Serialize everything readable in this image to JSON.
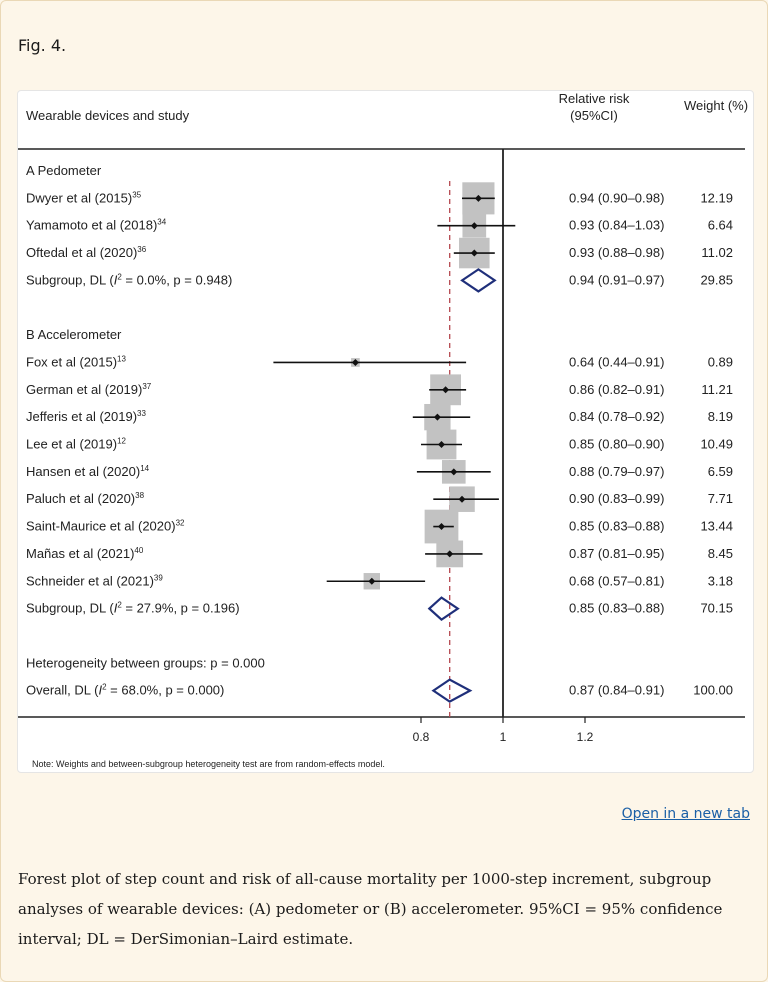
{
  "figure_label": "Fig. 4.",
  "open_link": "Open in a new tab",
  "caption": "Forest plot of step count and risk of all-cause mortality per 1000-step increment, subgroup analyses of wearable devices: (A) pedometer or (B) accelerometer. 95%CI = 95% confidence interval; DL = DerSimonian–Laird estimate.",
  "chart_data": {
    "type": "forest",
    "header": {
      "study": "Wearable devices and study",
      "rr_line1": "Relative risk",
      "rr_line2": "(95%CI)",
      "weight": "Weight (%)"
    },
    "x_ticks": [
      0.8,
      1,
      1.2
    ],
    "x_tick_labels": [
      "0.8",
      "1",
      "1.2"
    ],
    "null_value": 1,
    "overall_reference": 0.87,
    "rows": [
      {
        "kind": "group",
        "label": "A    Pedometer"
      },
      {
        "kind": "study",
        "name": "Dwyer et al (2015)",
        "ref": "35",
        "rr": 0.94,
        "lo": 0.9,
        "hi": 0.98,
        "rr_text": "0.94 (0.90–0.98)",
        "weight": 12.19,
        "weight_text": "12.19"
      },
      {
        "kind": "study",
        "name": "Yamamoto et al (2018)",
        "ref": "34",
        "rr": 0.93,
        "lo": 0.84,
        "hi": 1.03,
        "rr_text": "0.93 (0.84–1.03)",
        "weight": 6.64,
        "weight_text": "6.64"
      },
      {
        "kind": "study",
        "name": "Oftedal et al (2020)",
        "ref": "36",
        "rr": 0.93,
        "lo": 0.88,
        "hi": 0.98,
        "rr_text": "0.93 (0.88–0.98)",
        "weight": 11.02,
        "weight_text": "11.02"
      },
      {
        "kind": "subtotal",
        "pre": "Subgroup, DL (",
        "i2": "I",
        "post": "2 = 0.0%, p = 0.948)",
        "rr": 0.94,
        "lo": 0.91,
        "hi": 0.97,
        "rr_text": "0.94 (0.91–0.97)",
        "weight_text": "29.85"
      },
      {
        "kind": "gap"
      },
      {
        "kind": "group",
        "label": "B    Accelerometer"
      },
      {
        "kind": "study",
        "name": "Fox et al (2015)",
        "ref": "13",
        "rr": 0.64,
        "lo": 0.44,
        "hi": 0.91,
        "rr_text": "0.64 (0.44–0.91)",
        "weight": 0.89,
        "weight_text": "0.89"
      },
      {
        "kind": "study",
        "name": "German et al (2019)",
        "ref": "37",
        "rr": 0.86,
        "lo": 0.82,
        "hi": 0.91,
        "rr_text": "0.86 (0.82–0.91)",
        "weight": 11.21,
        "weight_text": "11.21"
      },
      {
        "kind": "study",
        "name": "Jefferis et al (2019)",
        "ref": "33",
        "rr": 0.84,
        "lo": 0.78,
        "hi": 0.92,
        "rr_text": "0.84 (0.78–0.92)",
        "weight": 8.19,
        "weight_text": "8.19"
      },
      {
        "kind": "study",
        "name": "Lee et al (2019)",
        "ref": "12",
        "rr": 0.85,
        "lo": 0.8,
        "hi": 0.9,
        "rr_text": "0.85 (0.80–0.90)",
        "weight": 10.49,
        "weight_text": "10.49"
      },
      {
        "kind": "study",
        "name": "Hansen et al (2020)",
        "ref": "14",
        "rr": 0.88,
        "lo": 0.79,
        "hi": 0.97,
        "rr_text": "0.88 (0.79–0.97)",
        "weight": 6.59,
        "weight_text": "6.59"
      },
      {
        "kind": "study",
        "name": "Paluch et al (2020)",
        "ref": "38",
        "rr": 0.9,
        "lo": 0.83,
        "hi": 0.99,
        "rr_text": "0.90 (0.83–0.99)",
        "weight": 7.71,
        "weight_text": "7.71"
      },
      {
        "kind": "study",
        "name": "Saint-Maurice et al (2020)",
        "ref": "32",
        "rr": 0.85,
        "lo": 0.83,
        "hi": 0.88,
        "rr_text": "0.85 (0.83–0.88)",
        "weight": 13.44,
        "weight_text": "13.44"
      },
      {
        "kind": "study",
        "name": "Mañas et al (2021)",
        "ref": "40",
        "rr": 0.87,
        "lo": 0.81,
        "hi": 0.95,
        "rr_text": "0.87 (0.81–0.95)",
        "weight": 8.45,
        "weight_text": "8.45"
      },
      {
        "kind": "study",
        "name": "Schneider et al (2021)",
        "ref": "39",
        "rr": 0.68,
        "lo": 0.57,
        "hi": 0.81,
        "rr_text": "0.68 (0.57–0.81)",
        "weight": 3.18,
        "weight_text": "3.18"
      },
      {
        "kind": "subtotal",
        "pre": "Subgroup, DL (",
        "i2": "I",
        "post": "2 = 27.9%, p = 0.196)",
        "rr": 0.85,
        "lo": 0.83,
        "hi": 0.88,
        "rr_text": "0.85 (0.83–0.88)",
        "weight_text": "70.15"
      },
      {
        "kind": "gap"
      },
      {
        "kind": "note",
        "label": "Heterogeneity between groups: p = 0.000"
      },
      {
        "kind": "overall",
        "pre": "Overall, DL (",
        "i2": "I",
        "post": "2 = 68.0%, p = 0.000)",
        "rr": 0.87,
        "lo": 0.84,
        "hi": 0.91,
        "rr_text": "0.87 (0.84–0.91)",
        "weight_text": "100.00"
      }
    ],
    "footnote": "Note: Weights and between-subgroup heterogeneity test are from random-effects model.",
    "colors": {
      "diamond": "#1f2f7a",
      "box": "#c2c2c2",
      "reference_line": "#b5474f"
    }
  }
}
